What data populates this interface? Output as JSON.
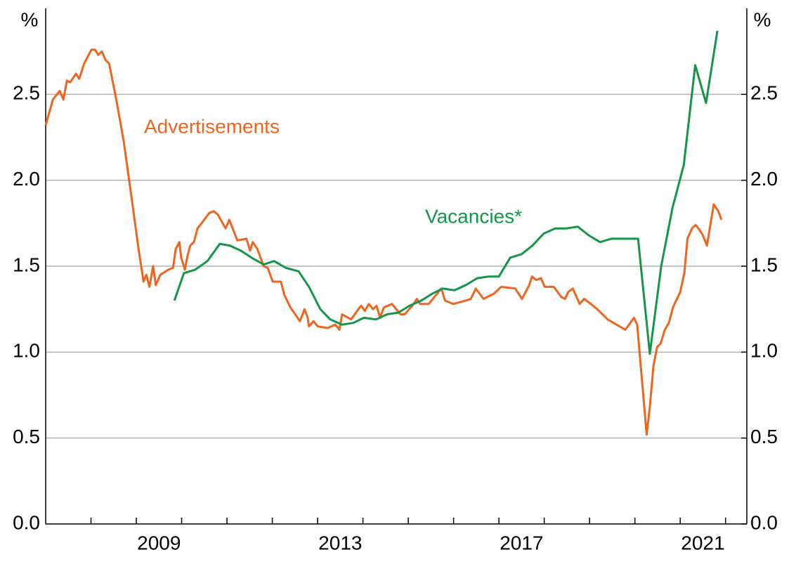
{
  "chart_data": {
    "type": "line",
    "y_unit_left": "%",
    "y_unit_right": "%",
    "xlim": [
      2007,
      2022.47
    ],
    "xticks": [
      {
        "value": 2009.5,
        "label": "2009"
      },
      {
        "value": 2013.5,
        "label": "2013"
      },
      {
        "value": 2017.5,
        "label": "2017"
      },
      {
        "value": 2021.5,
        "label": "2021"
      }
    ],
    "xminor_ticks": [
      2008,
      2009,
      2010,
      2011,
      2012,
      2013,
      2014,
      2015,
      2016,
      2017,
      2018,
      2019,
      2020,
      2021,
      2022
    ],
    "ylim": [
      0,
      3
    ],
    "yticks": [
      {
        "value": 0,
        "label": "0.0"
      },
      0.5,
      {
        "value": 1,
        "label": "1.0"
      },
      1.5,
      {
        "value": 2,
        "label": "2.0"
      },
      2.5
    ],
    "y2lim": [
      0,
      3
    ],
    "y2ticks": [
      {
        "value": 0,
        "label": "0.0"
      },
      0.5,
      {
        "value": 1,
        "label": "1.0"
      },
      1.5,
      {
        "value": 2,
        "label": "2.0"
      },
      2.5
    ],
    "grid": true,
    "series": [
      {
        "name": "Advertisements",
        "color": "#f0651e",
        "x": [
          2007.0,
          2007.16,
          2007.31,
          2007.39,
          2007.47,
          2007.54,
          2007.67,
          2007.74,
          2007.85,
          2008.01,
          2008.09,
          2008.16,
          2008.24,
          2008.32,
          2008.4,
          2008.55,
          2008.72,
          2008.89,
          2009.05,
          2009.16,
          2009.22,
          2009.29,
          2009.37,
          2009.43,
          2009.53,
          2009.71,
          2009.81,
          2009.87,
          2009.95,
          2009.99,
          2010.07,
          2010.13,
          2010.19,
          2010.27,
          2010.35,
          2010.44,
          2010.61,
          2010.71,
          2010.8,
          2010.97,
          2011.05,
          2011.23,
          2011.43,
          2011.51,
          2011.57,
          2011.67,
          2011.81,
          2011.9,
          2012.01,
          2012.19,
          2012.27,
          2012.4,
          2012.61,
          2012.71,
          2012.78,
          2012.81,
          2012.91,
          2013.0,
          2013.22,
          2013.39,
          2013.48,
          2013.54,
          2013.74,
          2013.9,
          2013.96,
          2014.04,
          2014.13,
          2014.22,
          2014.3,
          2014.38,
          2014.46,
          2014.64,
          2014.83,
          2014.92,
          2015.09,
          2015.19,
          2015.26,
          2015.45,
          2015.73,
          2015.81,
          2015.99,
          2016.27,
          2016.38,
          2016.49,
          2016.66,
          2016.89,
          2017.05,
          2017.36,
          2017.51,
          2017.67,
          2017.73,
          2017.82,
          2017.93,
          2018.01,
          2018.21,
          2018.38,
          2018.46,
          2018.53,
          2018.63,
          2018.78,
          2018.88,
          2019.03,
          2019.17,
          2019.4,
          2019.79,
          2019.98,
          2020.05,
          2020.26,
          2020.33,
          2020.41,
          2020.49,
          2020.57,
          2020.66,
          2020.75,
          2020.84,
          2021.0,
          2021.09,
          2021.16,
          2021.26,
          2021.34,
          2021.43,
          2021.5,
          2021.59,
          2021.74,
          2021.84,
          2021.91
        ],
        "values": [
          2.32,
          2.47,
          2.52,
          2.47,
          2.58,
          2.57,
          2.62,
          2.59,
          2.68,
          2.76,
          2.76,
          2.73,
          2.75,
          2.7,
          2.68,
          2.48,
          2.23,
          1.91,
          1.6,
          1.41,
          1.45,
          1.38,
          1.5,
          1.39,
          1.45,
          1.48,
          1.49,
          1.6,
          1.64,
          1.55,
          1.48,
          1.56,
          1.62,
          1.64,
          1.72,
          1.75,
          1.81,
          1.82,
          1.8,
          1.72,
          1.77,
          1.65,
          1.66,
          1.59,
          1.64,
          1.6,
          1.5,
          1.49,
          1.41,
          1.41,
          1.33,
          1.26,
          1.18,
          1.25,
          1.2,
          1.15,
          1.18,
          1.15,
          1.14,
          1.16,
          1.13,
          1.22,
          1.19,
          1.25,
          1.27,
          1.24,
          1.28,
          1.25,
          1.27,
          1.2,
          1.26,
          1.28,
          1.22,
          1.22,
          1.27,
          1.31,
          1.28,
          1.28,
          1.37,
          1.3,
          1.28,
          1.3,
          1.31,
          1.37,
          1.31,
          1.34,
          1.38,
          1.37,
          1.31,
          1.39,
          1.44,
          1.42,
          1.43,
          1.38,
          1.38,
          1.32,
          1.31,
          1.35,
          1.37,
          1.28,
          1.31,
          1.28,
          1.25,
          1.19,
          1.13,
          1.2,
          1.16,
          0.52,
          0.68,
          0.92,
          1.03,
          1.05,
          1.13,
          1.17,
          1.26,
          1.35,
          1.46,
          1.66,
          1.72,
          1.74,
          1.71,
          1.68,
          1.62,
          1.86,
          1.82,
          1.77
        ]
      },
      {
        "name": "Vacancies*",
        "color": "#14964a",
        "x": [
          2009.84,
          2010.05,
          2010.3,
          2010.57,
          2010.84,
          2011.06,
          2011.31,
          2011.54,
          2011.81,
          2012.04,
          2012.3,
          2012.58,
          2012.81,
          2013.06,
          2013.28,
          2013.54,
          2013.79,
          2014.02,
          2014.29,
          2014.53,
          2014.78,
          2015.03,
          2015.29,
          2015.53,
          2015.76,
          2016.02,
          2016.27,
          2016.52,
          2016.77,
          2017.0,
          2017.25,
          2017.5,
          2017.74,
          2017.99,
          2018.24,
          2018.49,
          2018.74,
          2018.98,
          2019.23,
          2019.48,
          2019.78,
          2020.07,
          2020.33,
          2020.58,
          2020.83,
          2021.08,
          2021.33,
          2021.57,
          2021.82
        ],
        "values": [
          1.3,
          1.46,
          1.48,
          1.53,
          1.63,
          1.62,
          1.59,
          1.55,
          1.51,
          1.53,
          1.49,
          1.47,
          1.38,
          1.25,
          1.19,
          1.16,
          1.17,
          1.2,
          1.19,
          1.22,
          1.23,
          1.27,
          1.3,
          1.34,
          1.37,
          1.36,
          1.39,
          1.43,
          1.44,
          1.44,
          1.55,
          1.57,
          1.62,
          1.69,
          1.72,
          1.72,
          1.73,
          1.68,
          1.64,
          1.66,
          1.66,
          1.66,
          0.99,
          1.5,
          1.84,
          2.09,
          2.67,
          2.45,
          2.87
        ]
      }
    ]
  }
}
